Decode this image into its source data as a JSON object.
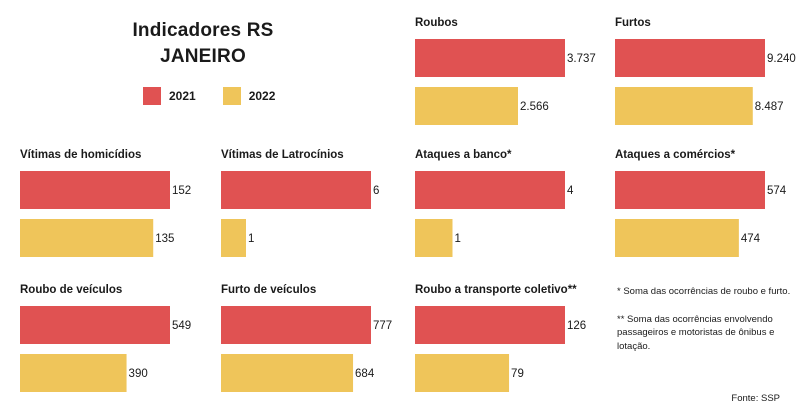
{
  "header": {
    "title_line1": "Indicadores RS",
    "title_line2": "JANEIRO"
  },
  "legend": [
    {
      "label": "2021",
      "color": "#e05252"
    },
    {
      "label": "2022",
      "color": "#efc55a"
    }
  ],
  "chart_data": [
    {
      "type": "bar",
      "title": "Roubos",
      "categories": [
        "2021",
        "2022"
      ],
      "values": [
        3737,
        2566
      ],
      "value_labels": [
        "3.737",
        "2.566"
      ],
      "colors": [
        "#e05252",
        "#efc55a"
      ]
    },
    {
      "type": "bar",
      "title": "Furtos",
      "categories": [
        "2021",
        "2022"
      ],
      "values": [
        9240,
        8487
      ],
      "value_labels": [
        "9.240",
        "8.487"
      ],
      "colors": [
        "#e05252",
        "#efc55a"
      ]
    },
    {
      "type": "bar",
      "title": "Vítimas de homicídios",
      "categories": [
        "2021",
        "2022"
      ],
      "values": [
        152,
        135
      ],
      "value_labels": [
        "152",
        "135"
      ],
      "colors": [
        "#e05252",
        "#efc55a"
      ]
    },
    {
      "type": "bar",
      "title": "Vítimas de Latrocínios",
      "categories": [
        "2021",
        "2022"
      ],
      "values": [
        6,
        1
      ],
      "value_labels": [
        "6",
        "1"
      ],
      "colors": [
        "#e05252",
        "#efc55a"
      ]
    },
    {
      "type": "bar",
      "title": "Ataques a banco*",
      "categories": [
        "2021",
        "2022"
      ],
      "values": [
        4,
        1
      ],
      "value_labels": [
        "4",
        "1"
      ],
      "colors": [
        "#e05252",
        "#efc55a"
      ]
    },
    {
      "type": "bar",
      "title": "Ataques a comércios*",
      "categories": [
        "2021",
        "2022"
      ],
      "values": [
        574,
        474
      ],
      "value_labels": [
        "574",
        "474"
      ],
      "colors": [
        "#e05252",
        "#efc55a"
      ]
    },
    {
      "type": "bar",
      "title": "Roubo de veículos",
      "categories": [
        "2021",
        "2022"
      ],
      "values": [
        549,
        390
      ],
      "value_labels": [
        "549",
        "390"
      ],
      "colors": [
        "#e05252",
        "#efc55a"
      ]
    },
    {
      "type": "bar",
      "title": "Furto de veículos",
      "categories": [
        "2021",
        "2022"
      ],
      "values": [
        777,
        684
      ],
      "value_labels": [
        "777",
        "684"
      ],
      "colors": [
        "#e05252",
        "#efc55a"
      ]
    },
    {
      "type": "bar",
      "title": "Roubo a transporte coletivo**",
      "categories": [
        "2021",
        "2022"
      ],
      "values": [
        126,
        79
      ],
      "value_labels": [
        "126",
        "79"
      ],
      "colors": [
        "#e05252",
        "#efc55a"
      ]
    }
  ],
  "notes": {
    "note1": "* Soma das ocorrências de roubo e furto.",
    "note2": "** Soma das ocorrências envolvendo passageiros e motoristas de ônibus e lotação."
  },
  "source": "Fonte: SSP"
}
